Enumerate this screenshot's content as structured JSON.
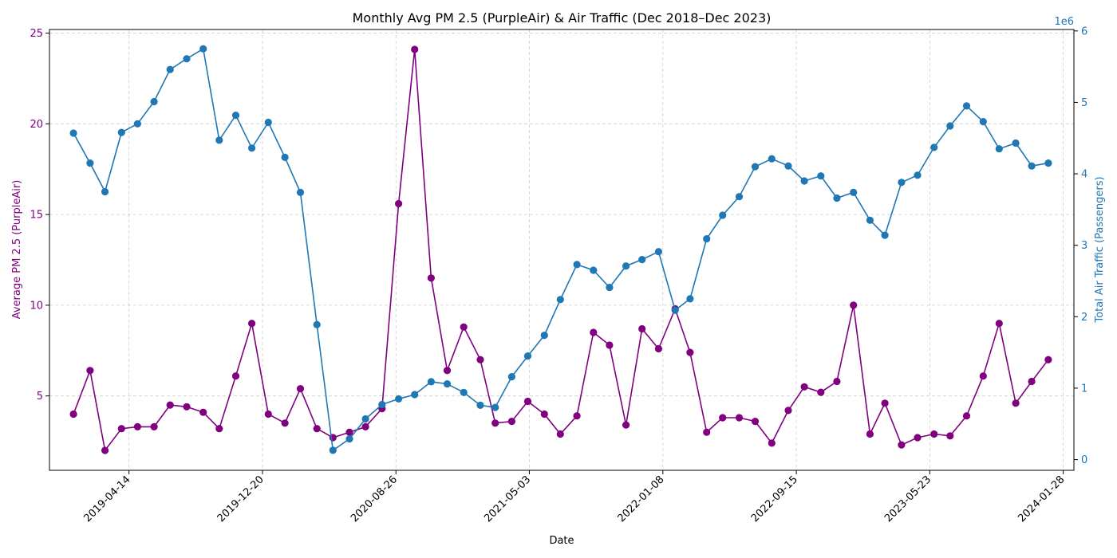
{
  "chart_data": {
    "type": "line",
    "title": "Monthly Avg PM 2.5 (PurpleAir) & Air Traffic (Dec 2018–Dec 2023)",
    "xlabel": "Date",
    "ylabel_left": "Average PM 2.5 (PurpleAir)",
    "ylabel_right": "Total Air Traffic (Passengers)",
    "right_axis_multiplier": "1e6",
    "xlim": [
      "2018-11-16",
      "2024-02-17"
    ],
    "ylim_left": [
      0.9,
      25.2
    ],
    "ylim_right": [
      -0.15,
      6.02
    ],
    "grid": true,
    "colors": {
      "pm": "#800080",
      "air": "#1f77b4"
    },
    "x_ticks": [
      "2019-04-14",
      "2019-12-20",
      "2020-08-26",
      "2021-05-03",
      "2022-01-08",
      "2022-09-15",
      "2023-05-23",
      "2024-01-28"
    ],
    "y_ticks_left": [
      5,
      10,
      15,
      20,
      25
    ],
    "y_ticks_right": [
      0,
      1,
      2,
      3,
      4,
      5,
      6
    ],
    "dates": [
      "2018-12-31",
      "2019-01-31",
      "2019-02-28",
      "2019-03-31",
      "2019-04-30",
      "2019-05-31",
      "2019-06-30",
      "2019-07-31",
      "2019-08-31",
      "2019-09-30",
      "2019-10-31",
      "2019-11-30",
      "2019-12-31",
      "2020-01-31",
      "2020-02-29",
      "2020-03-31",
      "2020-04-30",
      "2020-05-31",
      "2020-06-30",
      "2020-07-31",
      "2020-08-31",
      "2020-09-30",
      "2020-10-31",
      "2020-11-30",
      "2020-12-31",
      "2021-01-31",
      "2021-02-28",
      "2021-03-31",
      "2021-04-30",
      "2021-05-31",
      "2021-06-30",
      "2021-07-31",
      "2021-08-31",
      "2021-09-30",
      "2021-10-31",
      "2021-11-30",
      "2021-12-31",
      "2022-01-31",
      "2022-02-28",
      "2022-03-31",
      "2022-04-30",
      "2022-05-31",
      "2022-06-30",
      "2022-07-31",
      "2022-08-31",
      "2022-09-30",
      "2022-10-31",
      "2022-11-30",
      "2022-12-31",
      "2023-01-31",
      "2023-02-28",
      "2023-03-31",
      "2023-04-30",
      "2023-05-31",
      "2023-06-30",
      "2023-07-31",
      "2023-08-31",
      "2023-09-30",
      "2023-10-31",
      "2023-11-30",
      "2023-12-31"
    ],
    "series": [
      {
        "axis": "left",
        "values": [
          4.0,
          6.4,
          2.0,
          3.2,
          3.3,
          3.3,
          4.5,
          4.4,
          4.1,
          3.2,
          6.1,
          9.0,
          4.0,
          3.5,
          5.4,
          3.2,
          2.7,
          3.0,
          3.3,
          4.3,
          15.6,
          24.1,
          11.5,
          6.4,
          8.8,
          7.0,
          3.5,
          3.6,
          4.7,
          4.0,
          2.9,
          3.9,
          8.5,
          7.8,
          3.4,
          8.7,
          7.6,
          9.8,
          7.4,
          3.0,
          3.8,
          3.8,
          3.6,
          2.4,
          4.2,
          5.5,
          5.2,
          5.8,
          10.0,
          2.9,
          4.6,
          2.3,
          2.7,
          2.9,
          2.8,
          3.9,
          6.1,
          9.0,
          4.6,
          5.8,
          7.0
        ]
      },
      {
        "axis": "right",
        "values": [
          4.57,
          4.15,
          3.75,
          4.58,
          4.7,
          5.01,
          5.46,
          5.61,
          5.75,
          4.47,
          4.82,
          4.36,
          4.72,
          4.23,
          3.74,
          1.89,
          0.13,
          0.29,
          0.57,
          0.77,
          0.85,
          0.91,
          1.09,
          1.06,
          0.94,
          0.76,
          0.73,
          1.16,
          1.45,
          1.74,
          2.24,
          2.73,
          2.65,
          2.41,
          2.71,
          2.8,
          2.91,
          2.09,
          2.25,
          3.09,
          3.42,
          3.68,
          4.1,
          4.21,
          4.11,
          3.9,
          3.97,
          3.66,
          3.74,
          3.35,
          3.14,
          3.88,
          3.98,
          4.37,
          4.67,
          4.95,
          4.73,
          4.35,
          4.43,
          4.11,
          4.15
        ]
      }
    ]
  }
}
